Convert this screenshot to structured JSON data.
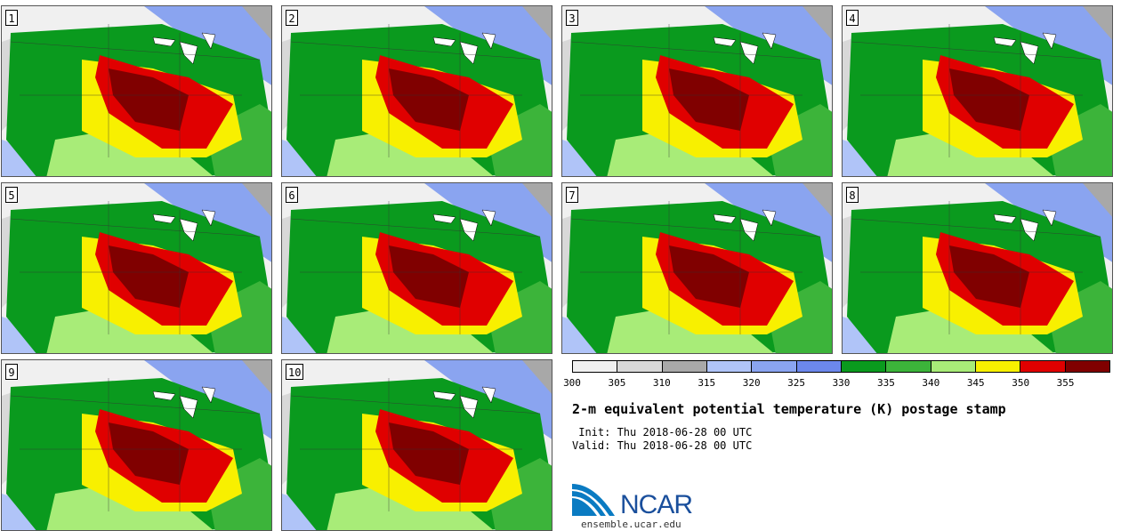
{
  "panels": [
    {
      "label": "1"
    },
    {
      "label": "2"
    },
    {
      "label": "3"
    },
    {
      "label": "4"
    },
    {
      "label": "5"
    },
    {
      "label": "6"
    },
    {
      "label": "7"
    },
    {
      "label": "8"
    },
    {
      "label": "9"
    },
    {
      "label": "10"
    }
  ],
  "colorbar": {
    "colors": [
      "#f0f0f0",
      "#d8d8d8",
      "#a8a8a8",
      "#b0c4f8",
      "#8aa4f0",
      "#6c88ec",
      "#0a9a1e",
      "#3cb43a",
      "#a8ec78",
      "#f8f000",
      "#e00000",
      "#800000"
    ],
    "ticks": [
      "300",
      "305",
      "310",
      "315",
      "320",
      "325",
      "330",
      "335",
      "340",
      "345",
      "350",
      "355"
    ]
  },
  "title": "2-m equivalent potential temperature (K) postage stamp",
  "init": " Init: Thu 2018-06-28 00 UTC",
  "valid": "Valid: Thu 2018-06-28 00 UTC",
  "logo": {
    "text": "NCAR",
    "website": "ensemble.ucar.edu"
  }
}
